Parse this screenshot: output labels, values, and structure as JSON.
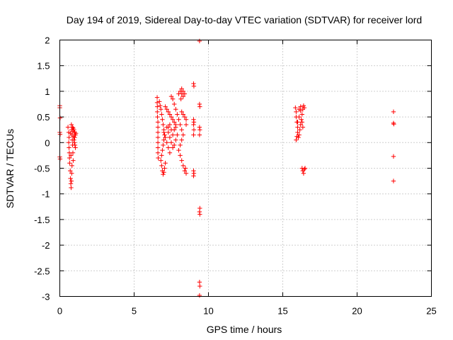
{
  "chart_data": {
    "type": "scatter",
    "title": "Day 194 of 2019, Sidereal Day-to-day VTEC variation (SDTVAR) for receiver lord",
    "xlabel": "GPS time / hours",
    "ylabel": "SDTVAR / TECUs",
    "xlim": [
      0,
      25
    ],
    "ylim": [
      -3,
      2
    ],
    "xticks": [
      0,
      5,
      10,
      15,
      20,
      25
    ],
    "xtick_labels": [
      "0",
      "5",
      "10",
      "15",
      "20",
      "25"
    ],
    "yticks": [
      -3,
      -2.5,
      -2,
      -1.5,
      -1,
      -0.5,
      0,
      0.5,
      1,
      1.5,
      2
    ],
    "ytick_labels": [
      "-3",
      "-2.5",
      "-2",
      "-1.5",
      "-1",
      "-0.5",
      "0",
      "0.5",
      "1",
      "1.5",
      "2"
    ],
    "grid": true,
    "marker": "+",
    "series": [
      {
        "name": "SDTVAR",
        "color": "#ff0000",
        "points": [
          [
            0.0,
            0.72
          ],
          [
            0.0,
            0.68
          ],
          [
            0.02,
            0.48
          ],
          [
            0.0,
            0.2
          ],
          [
            0.02,
            0.16
          ],
          [
            0.0,
            -0.28
          ],
          [
            0.02,
            -0.32
          ],
          [
            0.55,
            0.3
          ],
          [
            0.6,
            0.2
          ],
          [
            0.62,
            0.1
          ],
          [
            0.6,
            0.0
          ],
          [
            0.62,
            -0.1
          ],
          [
            0.64,
            -0.2
          ],
          [
            0.65,
            -0.3
          ],
          [
            0.66,
            -0.4
          ],
          [
            0.7,
            -0.55
          ],
          [
            0.72,
            -0.7
          ],
          [
            0.74,
            -0.8
          ],
          [
            0.76,
            -0.88
          ],
          [
            0.78,
            -0.75
          ],
          [
            0.8,
            -0.6
          ],
          [
            0.82,
            -0.45
          ],
          [
            0.78,
            0.35
          ],
          [
            0.8,
            0.25
          ],
          [
            0.82,
            0.15
          ],
          [
            0.84,
            0.05
          ],
          [
            0.86,
            -0.05
          ],
          [
            0.88,
            -0.2
          ],
          [
            0.9,
            -0.35
          ],
          [
            0.85,
            0.3
          ],
          [
            0.9,
            0.28
          ],
          [
            0.95,
            0.25
          ],
          [
            1.0,
            0.2
          ],
          [
            1.05,
            0.15
          ],
          [
            1.0,
            0.1
          ],
          [
            0.95,
            0.05
          ],
          [
            0.98,
            0.0
          ],
          [
            1.02,
            -0.05
          ],
          [
            1.05,
            -0.1
          ],
          [
            0.92,
            0.12
          ],
          [
            0.88,
            0.22
          ],
          [
            1.08,
            0.18
          ],
          [
            0.72,
            0.18
          ],
          [
            0.75,
            -0.25
          ],
          [
            6.55,
            0.88
          ],
          [
            6.55,
            0.78
          ],
          [
            6.56,
            0.7
          ],
          [
            6.56,
            0.6
          ],
          [
            6.57,
            0.5
          ],
          [
            6.6,
            0.4
          ],
          [
            6.6,
            0.3
          ],
          [
            6.6,
            0.2
          ],
          [
            6.6,
            0.1
          ],
          [
            6.6,
            0.0
          ],
          [
            6.6,
            -0.1
          ],
          [
            6.6,
            -0.2
          ],
          [
            6.62,
            -0.3
          ],
          [
            6.7,
            0.8
          ],
          [
            6.75,
            0.72
          ],
          [
            6.8,
            0.65
          ],
          [
            6.85,
            0.55
          ],
          [
            6.9,
            0.45
          ],
          [
            6.95,
            0.35
          ],
          [
            7.0,
            0.25
          ],
          [
            7.05,
            0.15
          ],
          [
            7.0,
            0.05
          ],
          [
            6.95,
            -0.05
          ],
          [
            6.9,
            -0.15
          ],
          [
            6.85,
            -0.25
          ],
          [
            6.8,
            -0.35
          ],
          [
            6.85,
            -0.45
          ],
          [
            6.9,
            -0.55
          ],
          [
            6.95,
            -0.62
          ],
          [
            7.0,
            -0.58
          ],
          [
            7.05,
            -0.5
          ],
          [
            7.1,
            -0.4
          ],
          [
            7.1,
            0.7
          ],
          [
            7.2,
            0.65
          ],
          [
            7.3,
            0.6
          ],
          [
            7.4,
            0.55
          ],
          [
            7.5,
            0.5
          ],
          [
            7.6,
            0.45
          ],
          [
            7.7,
            0.4
          ],
          [
            7.8,
            0.35
          ],
          [
            7.2,
            0.3
          ],
          [
            7.3,
            0.2
          ],
          [
            7.4,
            0.1
          ],
          [
            7.5,
            0.0
          ],
          [
            7.6,
            -0.1
          ],
          [
            7.7,
            -0.05
          ],
          [
            7.8,
            0.05
          ],
          [
            7.9,
            0.15
          ],
          [
            7.0,
            0.2
          ],
          [
            7.1,
            0.1
          ],
          [
            7.2,
            0.0
          ],
          [
            7.3,
            -0.1
          ],
          [
            7.4,
            -0.2
          ],
          [
            7.3,
            0.3
          ],
          [
            7.4,
            0.35
          ],
          [
            7.5,
            0.25
          ],
          [
            7.6,
            0.15
          ],
          [
            7.7,
            0.25
          ],
          [
            7.8,
            0.3
          ],
          [
            7.5,
            0.9
          ],
          [
            7.6,
            0.85
          ],
          [
            7.7,
            0.75
          ],
          [
            7.8,
            0.65
          ],
          [
            7.9,
            0.55
          ],
          [
            8.0,
            0.45
          ],
          [
            8.1,
            0.35
          ],
          [
            8.2,
            0.25
          ],
          [
            8.3,
            0.15
          ],
          [
            8.2,
            0.05
          ],
          [
            8.1,
            -0.05
          ],
          [
            8.0,
            -0.15
          ],
          [
            8.1,
            -0.25
          ],
          [
            8.2,
            -0.35
          ],
          [
            8.3,
            -0.45
          ],
          [
            8.4,
            -0.55
          ],
          [
            8.0,
            0.95
          ],
          [
            8.1,
            1.0
          ],
          [
            8.2,
            1.05
          ],
          [
            8.3,
            1.0
          ],
          [
            8.4,
            0.95
          ],
          [
            8.3,
            0.9
          ],
          [
            8.2,
            0.95
          ],
          [
            8.15,
            0.85
          ],
          [
            8.2,
            0.6
          ],
          [
            8.3,
            0.55
          ],
          [
            8.4,
            0.5
          ],
          [
            8.5,
            0.45
          ],
          [
            8.5,
            0.35
          ],
          [
            8.45,
            -0.5
          ],
          [
            8.5,
            -0.6
          ],
          [
            9.0,
            1.15
          ],
          [
            9.02,
            1.1
          ],
          [
            9.0,
            0.45
          ],
          [
            9.02,
            0.4
          ],
          [
            9.0,
            0.35
          ],
          [
            9.02,
            0.25
          ],
          [
            9.0,
            0.15
          ],
          [
            9.0,
            -0.55
          ],
          [
            9.02,
            -0.6
          ],
          [
            9.0,
            -0.65
          ],
          [
            9.4,
            1.98
          ],
          [
            9.4,
            0.75
          ],
          [
            9.42,
            0.7
          ],
          [
            9.4,
            0.3
          ],
          [
            9.42,
            0.25
          ],
          [
            9.4,
            0.15
          ],
          [
            9.42,
            -1.28
          ],
          [
            9.4,
            -1.35
          ],
          [
            9.42,
            -1.4
          ],
          [
            9.4,
            -2.72
          ],
          [
            9.42,
            -2.8
          ],
          [
            9.4,
            -2.98
          ],
          [
            15.85,
            0.68
          ],
          [
            15.9,
            0.6
          ],
          [
            15.9,
            0.5
          ],
          [
            15.95,
            0.4
          ],
          [
            16.0,
            0.3
          ],
          [
            16.0,
            0.2
          ],
          [
            16.05,
            0.1
          ],
          [
            15.95,
            0.12
          ],
          [
            15.9,
            0.05
          ],
          [
            16.1,
            0.15
          ],
          [
            16.15,
            0.25
          ],
          [
            16.2,
            0.35
          ],
          [
            16.25,
            0.45
          ],
          [
            16.3,
            0.55
          ],
          [
            16.35,
            0.65
          ],
          [
            16.4,
            0.72
          ],
          [
            16.2,
            0.62
          ],
          [
            16.1,
            0.5
          ],
          [
            16.0,
            0.4
          ],
          [
            16.3,
            0.4
          ],
          [
            16.35,
            0.3
          ],
          [
            16.1,
            0.65
          ],
          [
            16.2,
            0.7
          ],
          [
            16.45,
            0.68
          ],
          [
            16.3,
            -0.5
          ],
          [
            16.35,
            -0.55
          ],
          [
            16.4,
            -0.6
          ],
          [
            16.45,
            -0.52
          ],
          [
            16.5,
            -0.5
          ],
          [
            22.45,
            0.6
          ],
          [
            22.45,
            0.38
          ],
          [
            22.47,
            0.36
          ],
          [
            22.45,
            -0.27
          ],
          [
            22.45,
            -0.75
          ]
        ]
      }
    ]
  }
}
